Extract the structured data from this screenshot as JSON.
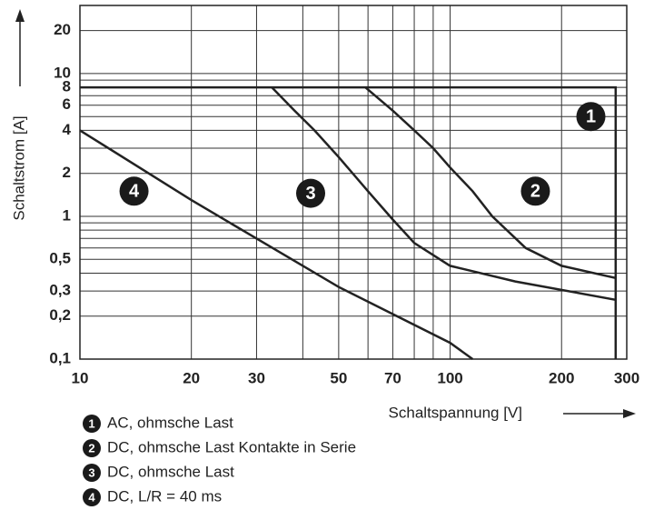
{
  "chart_data": {
    "type": "line",
    "x_label": "Schaltspannung [V]",
    "y_label": "Schaltstrom [A]",
    "log_x": true,
    "log_y": true,
    "xlim": [
      10,
      300
    ],
    "ylim": [
      0.1,
      30
    ],
    "xticks": [
      10,
      20,
      30,
      50,
      70,
      100,
      200,
      300
    ],
    "yticks": [
      {
        "value": 0.1,
        "label": "0,1"
      },
      {
        "value": 0.2,
        "label": "0,2"
      },
      {
        "value": 0.3,
        "label": "0,3"
      },
      {
        "value": 0.5,
        "label": "0,5"
      },
      1,
      2,
      4,
      6,
      8,
      10,
      20
    ],
    "xgrid": [
      10,
      20,
      30,
      40,
      50,
      60,
      70,
      80,
      90,
      100,
      200
    ],
    "ygrid": [
      0.1,
      0.2,
      0.3,
      0.4,
      0.5,
      0.6,
      0.7,
      0.8,
      0.9,
      1,
      2,
      3,
      4,
      5,
      6,
      7,
      8,
      9,
      10,
      20
    ],
    "color": "#222222",
    "series": [
      {
        "badge": "1",
        "name": "AC, ohmsche Last",
        "color": "#222222",
        "x": [
          10,
          280,
          280
        ],
        "values": [
          8,
          8,
          0.1
        ],
        "badge_at": [
          240,
          5
        ]
      },
      {
        "badge": "2",
        "name": "DC, ohmsche Last Kontakte in Serie",
        "color": "#222222",
        "x": [
          59,
          70,
          80,
          90,
          100,
          115,
          130,
          160,
          200,
          280
        ],
        "values": [
          8,
          5.5,
          4,
          3,
          2.2,
          1.5,
          1,
          0.6,
          0.45,
          0.37
        ],
        "badge_at": [
          170,
          1.5
        ]
      },
      {
        "badge": "3",
        "name": "DC, ohmsche Last",
        "color": "#222222",
        "x": [
          33,
          38,
          43,
          50,
          60,
          70,
          80,
          100,
          150,
          280
        ],
        "values": [
          8,
          5.5,
          4,
          2.6,
          1.5,
          0.95,
          0.65,
          0.45,
          0.35,
          0.26
        ],
        "badge_at": [
          42,
          1.45
        ]
      },
      {
        "badge": "4",
        "name": "DC, L/R = 40 ms",
        "color": "#222222",
        "x": [
          10,
          20,
          50,
          100,
          115
        ],
        "values": [
          4,
          1.3,
          0.32,
          0.13,
          0.1
        ],
        "badge_at": [
          14,
          1.5
        ]
      }
    ]
  }
}
